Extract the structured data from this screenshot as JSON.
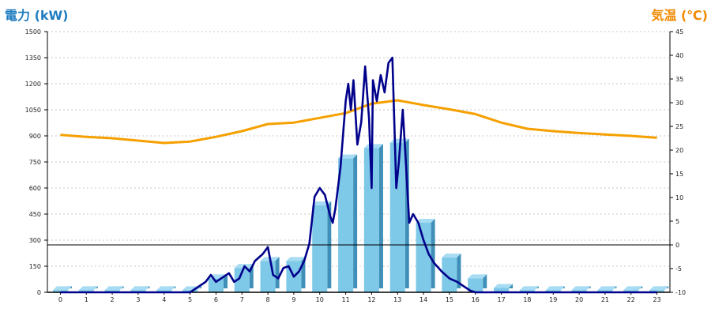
{
  "chart_data": {
    "type": "bar+line",
    "title": "",
    "y_left_label": "電力 (kW)",
    "y_right_label": "気温 (℃)",
    "x_ticks": [
      "0",
      "1",
      "2",
      "3",
      "4",
      "5",
      "6",
      "7",
      "8",
      "9",
      "10",
      "11",
      "12",
      "13",
      "14",
      "15",
      "16",
      "17",
      "18",
      "19",
      "20",
      "21",
      "22",
      "23"
    ],
    "y_left_ticks": [
      "0",
      "150",
      "300",
      "450",
      "600",
      "750",
      "900",
      "1050",
      "1200",
      "1350",
      "1500"
    ],
    "y_right_ticks": [
      "-10",
      "-5",
      "0",
      "5",
      "10",
      "15",
      "20",
      "25",
      "30",
      "35",
      "40",
      "45"
    ],
    "y_left_range": [
      0,
      1500
    ],
    "y_right_range": [
      -10,
      45
    ],
    "grid": true,
    "bars": {
      "name": "",
      "color": "#7ec8e8",
      "values": [
        12,
        12,
        12,
        12,
        12,
        12,
        80,
        140,
        180,
        180,
        500,
        770,
        830,
        860,
        400,
        200,
        80,
        25,
        12,
        12,
        12,
        12,
        12,
        12
      ]
    },
    "power_line": {
      "color": "#00008b",
      "x": [
        0,
        1,
        2,
        3,
        4,
        5,
        5.3,
        5.6,
        5.8,
        6.0,
        6.2,
        6.5,
        6.7,
        6.9,
        7.1,
        7.3,
        7.5,
        7.8,
        8.0,
        8.2,
        8.4,
        8.6,
        8.8,
        9.0,
        9.2,
        9.4,
        9.6,
        9.8,
        10.0,
        10.2,
        10.4,
        10.5,
        10.6,
        10.8,
        11.0,
        11.1,
        11.2,
        11.3,
        11.45,
        11.6,
        11.75,
        11.9,
        12.0,
        12.05,
        12.2,
        12.35,
        12.5,
        12.65,
        12.8,
        12.95,
        13.05,
        13.2,
        13.3,
        13.45,
        13.6,
        13.8,
        14.0,
        14.2,
        14.4,
        14.7,
        15.0,
        15.3,
        15.6,
        15.8,
        16.0,
        16.3,
        16.5,
        16.7,
        16.9,
        17,
        18,
        19,
        20,
        21,
        22,
        23
      ],
      "y": [
        0,
        0,
        0,
        0,
        0,
        0,
        30,
        60,
        100,
        60,
        80,
        110,
        60,
        80,
        150,
        120,
        180,
        220,
        260,
        100,
        80,
        140,
        150,
        90,
        120,
        180,
        280,
        550,
        600,
        560,
        440,
        400,
        480,
        720,
        1100,
        1200,
        1050,
        1220,
        850,
        980,
        1300,
        1000,
        600,
        1220,
        1100,
        1250,
        1150,
        1320,
        1350,
        600,
        750,
        1050,
        800,
        400,
        450,
        400,
        300,
        220,
        170,
        120,
        80,
        60,
        30,
        10,
        0,
        0,
        0,
        0,
        0,
        0,
        0,
        0,
        0,
        0,
        0,
        0
      ]
    },
    "temperature_line": {
      "color": "#f5a000",
      "x": [
        0,
        1,
        2,
        3,
        4,
        5,
        6,
        7,
        8,
        9,
        10,
        11,
        12,
        13,
        14,
        15,
        16,
        17,
        18,
        19,
        20,
        21,
        22,
        23
      ],
      "y": [
        23.2,
        22.8,
        22.5,
        22,
        21.5,
        21.8,
        22.8,
        24,
        25.5,
        25.8,
        26.8,
        27.8,
        29.8,
        30.5,
        29.5,
        28.6,
        27.6,
        25.8,
        24.5,
        24.0,
        23.6,
        23.3,
        23.0,
        22.6
      ]
    }
  }
}
